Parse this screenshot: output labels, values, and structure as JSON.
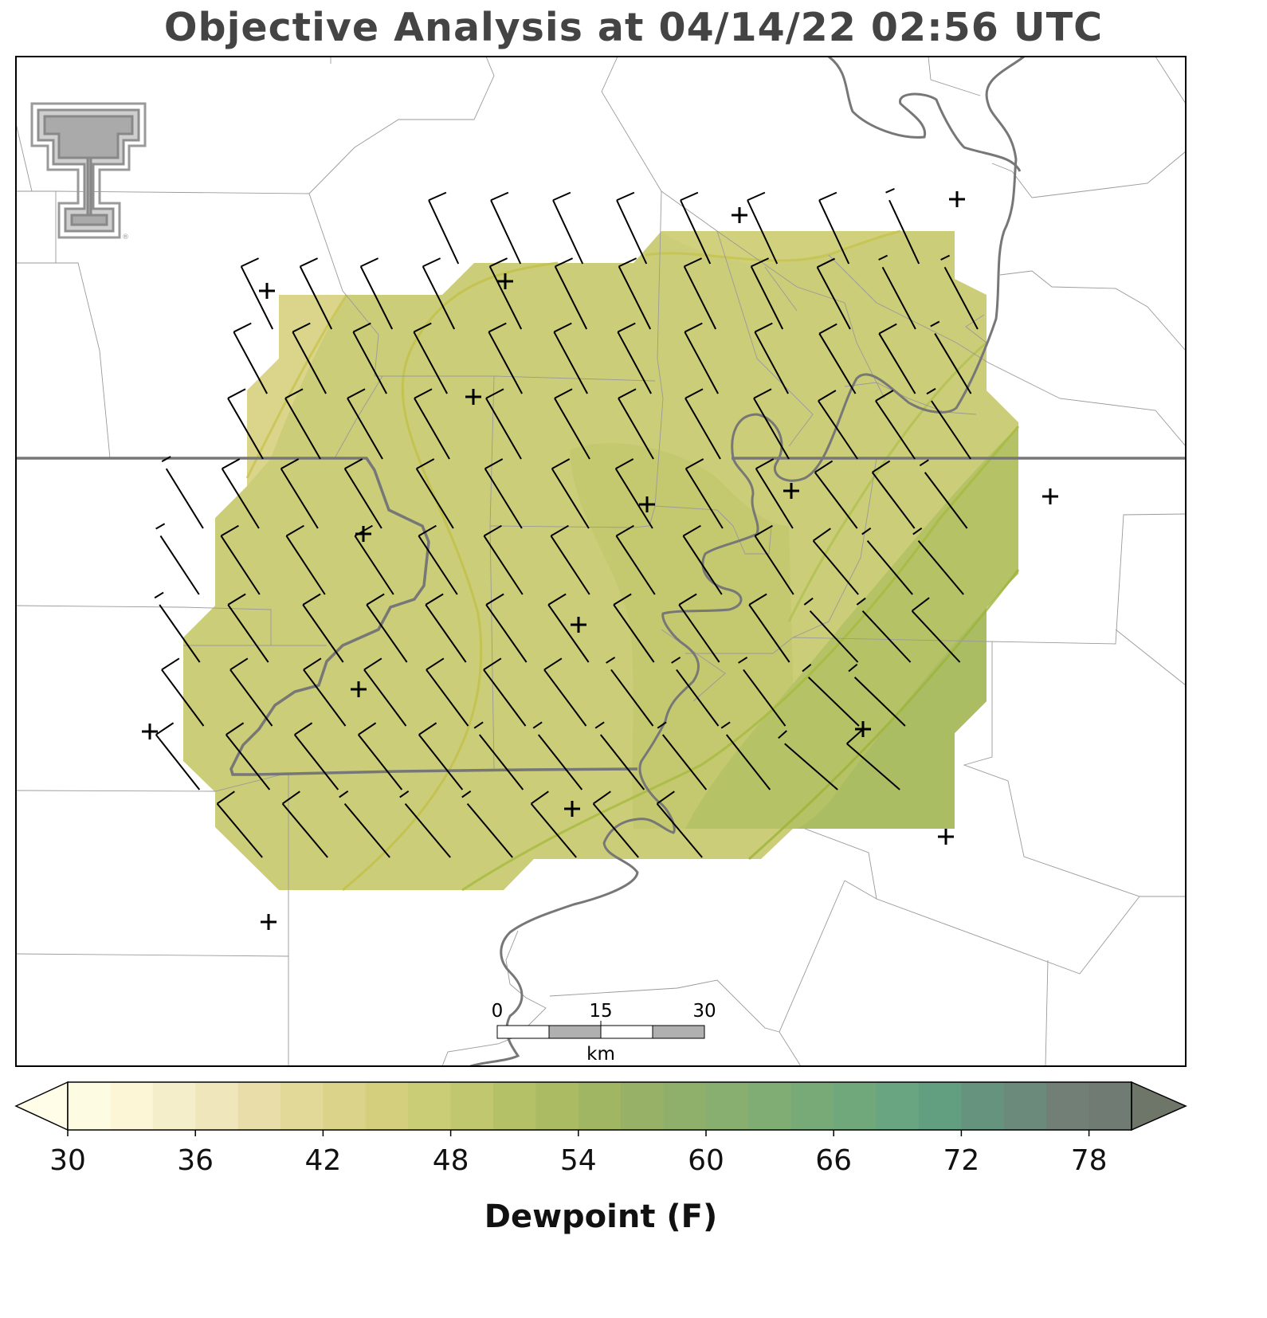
{
  "title": "Objective Analysis at 04/14/22 02:56 UTC",
  "logo": {
    "name": "texas-tech-double-t-logo",
    "text": "TT",
    "registered_mark": "®",
    "color": "#9a9a9a"
  },
  "scale_bar": {
    "ticks": [
      "0",
      "15",
      "30"
    ],
    "unit": "km"
  },
  "colorbar": {
    "label": "Dewpoint (F)",
    "min": 30,
    "max": 80,
    "step": 2,
    "extend": "both",
    "tick_labels": [
      "30",
      "36",
      "42",
      "48",
      "54",
      "60",
      "66",
      "72",
      "78"
    ],
    "colors": [
      "#fefbe3",
      "#fcf6d6",
      "#f5eecb",
      "#efe6bc",
      "#e9deaa",
      "#e2d898",
      "#dbd389",
      "#d3cf7d",
      "#cbcc76",
      "#c1c76e",
      "#b5c166",
      "#aabb63",
      "#a0b662",
      "#97b266",
      "#8fb06a",
      "#88af70",
      "#7fad74",
      "#78aa78",
      "#70a87c",
      "#68a580",
      "#629f80",
      "#66937d",
      "#6c8a7b",
      "#717f77",
      "#707b73",
      "#6e7670",
      "#6c706c"
    ],
    "under_color": "#fffce8",
    "over_color": "#6e7569"
  },
  "stations": [
    {
      "lon": 335,
      "lat": 365
    },
    {
      "lon": 634,
      "lat": 353
    },
    {
      "lon": 928,
      "lat": 270
    },
    {
      "lon": 1201,
      "lat": 250
    },
    {
      "lon": 594,
      "lat": 498
    },
    {
      "lon": 456,
      "lat": 670
    },
    {
      "lon": 812,
      "lat": 633
    },
    {
      "lon": 993,
      "lat": 616
    },
    {
      "lon": 1318,
      "lat": 623
    },
    {
      "lon": 726,
      "lat": 784
    },
    {
      "lon": 450,
      "lat": 865
    },
    {
      "lon": 188,
      "lat": 918
    },
    {
      "lon": 1083,
      "lat": 915
    },
    {
      "lon": 718,
      "lat": 1015
    },
    {
      "lon": 1187,
      "lat": 1050
    },
    {
      "lon": 337,
      "lat": 1157
    }
  ],
  "wind_barbs": {
    "color": "#000000",
    "count_described": "gridded wind barbs, mostly 10 kt, flow from the north-northwest in the north shifting to northwest in the south"
  }
}
